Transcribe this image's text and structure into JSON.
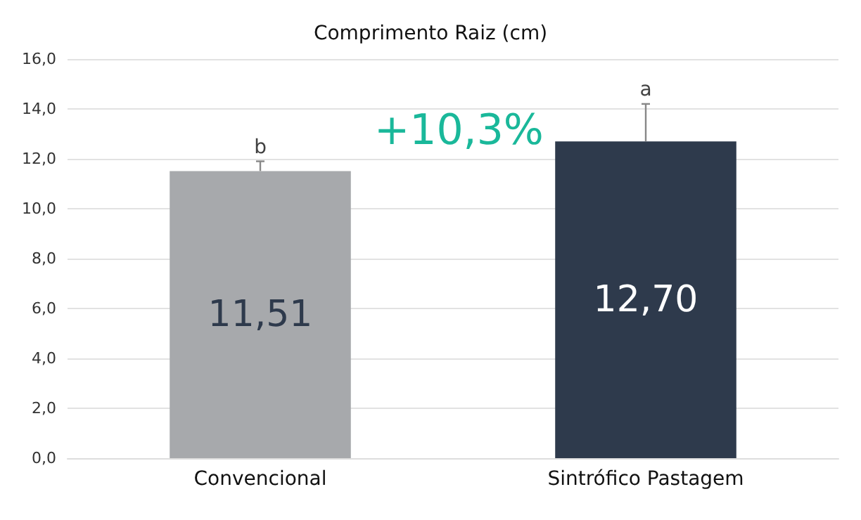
{
  "chart_data": {
    "type": "bar",
    "title": "Comprimento Raiz (cm)",
    "categories": [
      "Convencional",
      "Sintrófico Pastagem"
    ],
    "values": [
      11.51,
      12.7
    ],
    "colors": [
      "#a7a9ac",
      "#2e3a4c"
    ],
    "value_labels": [
      "11,51",
      "12,70"
    ],
    "errors": [
      [
        11.51,
        11.9
      ],
      [
        12.7,
        14.2
      ]
    ],
    "ylim": [
      0,
      16
    ],
    "yticks": [
      {
        "value": 0,
        "label": "0,0"
      },
      {
        "value": 2,
        "label": "2,0"
      },
      {
        "value": 4,
        "label": "4,0"
      },
      {
        "value": 6,
        "label": "6,0"
      },
      {
        "value": 8,
        "label": "8,0"
      },
      {
        "value": 10,
        "label": "10,0"
      },
      {
        "value": 12,
        "label": "12,0"
      },
      {
        "value": 14,
        "label": "14,0"
      },
      {
        "value": 16,
        "label": "16,0"
      }
    ],
    "annotations": [
      {
        "text": "b",
        "x": "Convencional",
        "y": 11.9
      },
      {
        "text": "a",
        "x": "Sintrófico Pastagem",
        "y": 14.2
      },
      "+10,3%"
    ],
    "grid": "y"
  }
}
